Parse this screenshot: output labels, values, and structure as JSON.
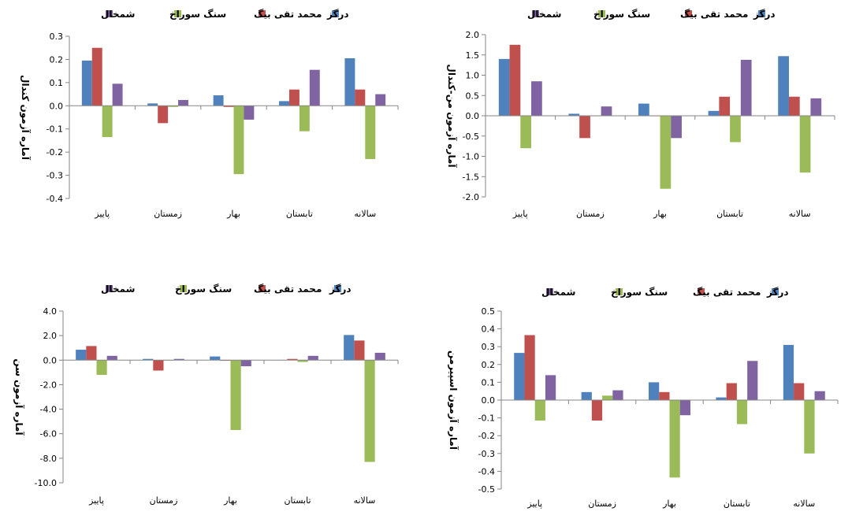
{
  "chart_data": [
    {
      "type": "bar",
      "ylabel": "آماره آزمون کندال",
      "categories": [
        "پاییز",
        "زمستان",
        "بهار",
        "تابستان",
        "سالانه"
      ],
      "ylim": [
        -0.4,
        0.3
      ],
      "yticks": [
        0.3,
        0.2,
        0.1,
        0.0,
        -0.1,
        -0.2,
        -0.3,
        -0.4
      ],
      "tick_decimals": 1,
      "series": [
        {
          "name": "درگز",
          "color": "#4F81BD",
          "values": [
            0.195,
            0.01,
            0.045,
            0.02,
            0.205
          ]
        },
        {
          "name": "محمد تقی بیگ",
          "color": "#C0504D",
          "values": [
            0.25,
            -0.075,
            -0.005,
            0.07,
            0.07
          ]
        },
        {
          "name": "سنگ سوراخ",
          "color": "#9BBB59",
          "values": [
            -0.135,
            -0.005,
            -0.295,
            -0.11,
            -0.23
          ]
        },
        {
          "name": "شمخال",
          "color": "#8064A2",
          "values": [
            0.095,
            0.025,
            -0.06,
            0.155,
            0.05
          ]
        }
      ]
    },
    {
      "type": "bar",
      "ylabel": "آماره آزمون من-کندال",
      "categories": [
        "پاییز",
        "زمستان",
        "بهار",
        "تابستان",
        "سالانه"
      ],
      "ylim": [
        -2.0,
        2.0
      ],
      "yticks": [
        2.0,
        1.5,
        1.0,
        0.5,
        0.0,
        -0.5,
        -1.0,
        -1.5,
        -2.0
      ],
      "tick_decimals": 1,
      "series": [
        {
          "name": "درگز",
          "color": "#4F81BD",
          "values": [
            1.4,
            0.05,
            0.3,
            0.12,
            1.47
          ]
        },
        {
          "name": "محمد تقی بیگ",
          "color": "#C0504D",
          "values": [
            1.75,
            -0.55,
            0.0,
            0.47,
            0.47
          ]
        },
        {
          "name": "سنگ سوراخ",
          "color": "#9BBB59",
          "values": [
            -0.8,
            0.0,
            -1.8,
            -0.65,
            -1.4
          ]
        },
        {
          "name": "شمخال",
          "color": "#8064A2",
          "values": [
            0.85,
            0.23,
            -0.55,
            1.38,
            0.43
          ]
        }
      ]
    },
    {
      "type": "bar",
      "ylabel": "آماره آزمون سن",
      "categories": [
        "پاییز",
        "زمستان",
        "بهار",
        "تابستان",
        "سالانه"
      ],
      "ylim": [
        -10.0,
        4.0
      ],
      "yticks": [
        4.0,
        2.0,
        0.0,
        -2.0,
        -4.0,
        -6.0,
        -8.0,
        -10.0
      ],
      "tick_decimals": 1,
      "series": [
        {
          "name": "درگز",
          "color": "#4F81BD",
          "values": [
            0.85,
            0.1,
            0.3,
            0.02,
            2.05
          ]
        },
        {
          "name": "محمد تقی بیگ",
          "color": "#C0504D",
          "values": [
            1.15,
            -0.85,
            -0.05,
            0.1,
            1.6
          ]
        },
        {
          "name": "سنگ سوراخ",
          "color": "#9BBB59",
          "values": [
            -1.2,
            0.0,
            -5.7,
            -0.15,
            -8.3
          ]
        },
        {
          "name": "شمخال",
          "color": "#8064A2",
          "values": [
            0.35,
            0.1,
            -0.5,
            0.35,
            0.6
          ]
        }
      ]
    },
    {
      "type": "bar",
      "ylabel": "آماره آزمون اسپیرمن",
      "categories": [
        "پاییز",
        "زمستان",
        "بهار",
        "تابستان",
        "سالانه"
      ],
      "ylim": [
        -0.5,
        0.5
      ],
      "yticks": [
        0.5,
        0.4,
        0.3,
        0.2,
        0.1,
        0.0,
        -0.1,
        -0.2,
        -0.3,
        -0.4,
        -0.5
      ],
      "tick_decimals": 1,
      "series": [
        {
          "name": "درگز",
          "color": "#4F81BD",
          "values": [
            0.265,
            0.045,
            0.1,
            0.015,
            0.31
          ]
        },
        {
          "name": "محمد تقی بیگ",
          "color": "#C0504D",
          "values": [
            0.365,
            -0.115,
            0.045,
            0.095,
            0.095
          ]
        },
        {
          "name": "سنگ سوراخ",
          "color": "#9BBB59",
          "values": [
            -0.115,
            0.025,
            -0.435,
            -0.135,
            -0.3
          ]
        },
        {
          "name": "شمخال",
          "color": "#8064A2",
          "values": [
            0.14,
            0.055,
            -0.085,
            0.22,
            0.05
          ]
        }
      ]
    }
  ]
}
